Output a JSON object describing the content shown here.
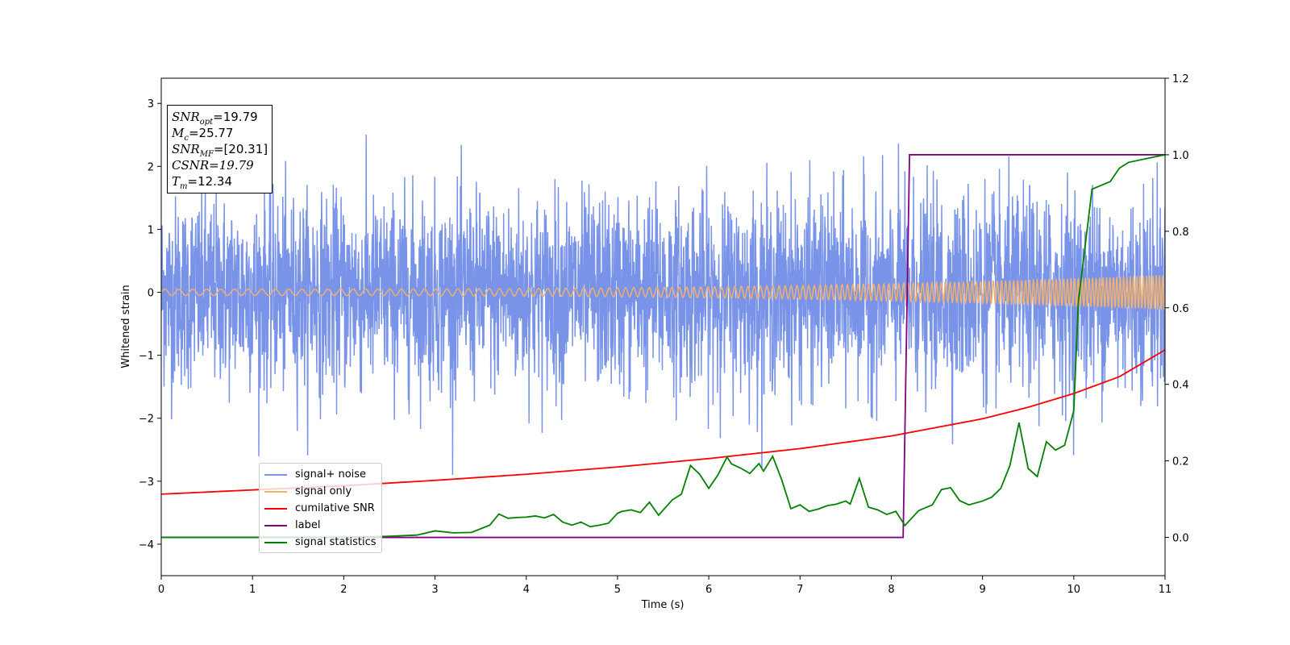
{
  "chart_data": {
    "type": "line",
    "xlabel": "Time (s)",
    "ylabel": "Whitened strain",
    "xlim": [
      0,
      11
    ],
    "ylim": [
      -4.5,
      3.4
    ],
    "y2lim": [
      -0.1,
      1.2
    ],
    "x_ticks": [
      "0",
      "1",
      "2",
      "3",
      "4",
      "5",
      "6",
      "7",
      "8",
      "9",
      "10",
      "11"
    ],
    "y_ticks": [
      "3",
      "2",
      "1",
      "0",
      "−1",
      "−2",
      "−3",
      "−4"
    ],
    "y2_ticks": [
      "1.2",
      "1.0",
      "0.8",
      "0.6",
      "0.4",
      "0.2",
      "0.0"
    ],
    "legend_position": "lower-left",
    "series": [
      {
        "name": "signal+ noise",
        "axis": "left",
        "color": "#7893e8",
        "description_kind": "noise",
        "amplitude_sd": 0.75
      },
      {
        "name": "signal only",
        "axis": "left",
        "color": "#f0b070",
        "amp_start": 0.05,
        "amp_end": 0.28,
        "freq_start": 6.5,
        "freq_end": 14
      },
      {
        "name": "cumilative SNR",
        "axis": "right",
        "color": "#ff0000",
        "x": [
          0,
          1,
          2,
          3,
          4,
          5,
          6,
          7,
          8,
          9,
          9.5,
          10,
          10.5,
          11
        ],
        "y": [
          0.113,
          0.124,
          0.135,
          0.149,
          0.165,
          0.184,
          0.206,
          0.232,
          0.265,
          0.31,
          0.34,
          0.376,
          0.42,
          0.49
        ]
      },
      {
        "name": "label",
        "axis": "right",
        "color": "#800080",
        "x": [
          0,
          8.13,
          8.2,
          11
        ],
        "y": [
          0,
          0,
          1,
          1
        ]
      },
      {
        "name": "signal statistics",
        "axis": "right",
        "color": "#008000",
        "x": [
          0,
          1,
          2,
          2.5,
          2.8,
          3.0,
          3.2,
          3.4,
          3.6,
          3.7,
          3.8,
          3.9,
          4.0,
          4.1,
          4.2,
          4.3,
          4.4,
          4.5,
          4.6,
          4.7,
          4.8,
          4.9,
          5.0,
          5.05,
          5.15,
          5.25,
          5.35,
          5.45,
          5.6,
          5.7,
          5.8,
          5.9,
          6.0,
          6.1,
          6.2,
          6.25,
          6.35,
          6.45,
          6.55,
          6.6,
          6.7,
          6.8,
          6.9,
          7.0,
          7.1,
          7.2,
          7.3,
          7.4,
          7.5,
          7.55,
          7.65,
          7.75,
          7.85,
          7.95,
          8.05,
          8.15,
          8.3,
          8.45,
          8.55,
          8.65,
          8.75,
          8.85,
          9.0,
          9.1,
          9.2,
          9.3,
          9.4,
          9.5,
          9.6,
          9.7,
          9.8,
          9.9,
          10.0,
          10.05,
          10.2,
          10.4,
          10.5,
          10.6,
          10.8,
          11.0
        ],
        "y": [
          0.0,
          0.0,
          0.0,
          0.003,
          0.006,
          0.017,
          0.012,
          0.013,
          0.032,
          0.061,
          0.05,
          0.052,
          0.053,
          0.056,
          0.051,
          0.06,
          0.04,
          0.032,
          0.04,
          0.028,
          0.032,
          0.037,
          0.063,
          0.068,
          0.072,
          0.065,
          0.092,
          0.058,
          0.098,
          0.113,
          0.188,
          0.165,
          0.128,
          0.163,
          0.21,
          0.192,
          0.181,
          0.167,
          0.193,
          0.173,
          0.212,
          0.15,
          0.075,
          0.085,
          0.068,
          0.074,
          0.083,
          0.087,
          0.095,
          0.087,
          0.154,
          0.079,
          0.072,
          0.06,
          0.068,
          0.031,
          0.07,
          0.085,
          0.125,
          0.13,
          0.096,
          0.085,
          0.095,
          0.105,
          0.128,
          0.188,
          0.3,
          0.18,
          0.159,
          0.25,
          0.228,
          0.241,
          0.331,
          0.615,
          0.91,
          0.93,
          0.965,
          0.98,
          0.99,
          1.0
        ]
      }
    ]
  },
  "annotation": {
    "snr_opt_value": "=19.79",
    "mc_value": "=25.77",
    "snr_mf_value": "=[20.31]",
    "csnr_value": "CSNR=19.79",
    "tm_value": "=12.34"
  }
}
